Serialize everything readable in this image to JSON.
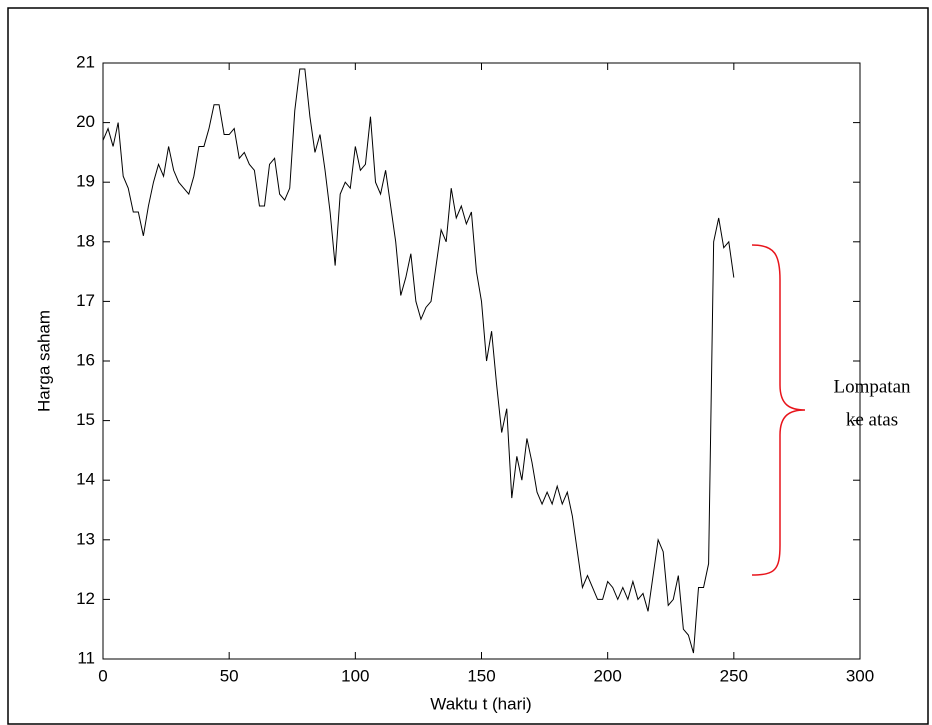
{
  "chart_data": {
    "type": "line",
    "xlabel": "Waktu t (hari)",
    "ylabel": "Harga saham",
    "annotation": [
      "Lompatan",
      "ke atas"
    ],
    "annotation_color": "#e8141b",
    "color": "#000000",
    "x": [
      0,
      2,
      4,
      6,
      8,
      10,
      12,
      14,
      16,
      18,
      20,
      22,
      24,
      26,
      28,
      30,
      32,
      34,
      36,
      38,
      40,
      42,
      44,
      46,
      48,
      50,
      52,
      54,
      56,
      58,
      60,
      62,
      64,
      66,
      68,
      70,
      72,
      74,
      76,
      78,
      80,
      82,
      84,
      86,
      88,
      90,
      92,
      94,
      96,
      98,
      100,
      102,
      104,
      106,
      108,
      110,
      112,
      114,
      116,
      118,
      120,
      122,
      124,
      126,
      128,
      130,
      132,
      134,
      136,
      138,
      140,
      142,
      144,
      146,
      148,
      150,
      152,
      154,
      156,
      158,
      160,
      162,
      164,
      166,
      168,
      170,
      172,
      174,
      176,
      178,
      180,
      182,
      184,
      186,
      188,
      190,
      192,
      194,
      196,
      198,
      200,
      202,
      204,
      206,
      208,
      210,
      212,
      214,
      216,
      218,
      220,
      222,
      224,
      226,
      228,
      230,
      232,
      234,
      236,
      238,
      240,
      242,
      244,
      246,
      248,
      250
    ],
    "values": [
      19.7,
      19.9,
      19.6,
      20.0,
      19.1,
      18.9,
      18.5,
      18.5,
      18.1,
      18.6,
      19.0,
      19.3,
      19.1,
      19.6,
      19.2,
      19.0,
      18.9,
      18.8,
      19.1,
      19.6,
      19.6,
      19.9,
      20.3,
      20.3,
      19.8,
      19.8,
      19.9,
      19.4,
      19.5,
      19.3,
      19.2,
      18.6,
      18.6,
      19.3,
      19.4,
      18.8,
      18.7,
      18.9,
      20.2,
      20.9,
      20.9,
      20.1,
      19.5,
      19.8,
      19.2,
      18.5,
      17.6,
      18.8,
      19.0,
      18.9,
      19.6,
      19.2,
      19.3,
      20.1,
      19.0,
      18.8,
      19.2,
      18.6,
      18.0,
      17.1,
      17.4,
      17.8,
      17.0,
      16.7,
      16.9,
      17.0,
      17.6,
      18.2,
      18.0,
      18.9,
      18.4,
      18.6,
      18.3,
      18.5,
      17.5,
      17.0,
      16.0,
      16.5,
      15.6,
      14.8,
      15.2,
      13.7,
      14.4,
      14.0,
      14.7,
      14.3,
      13.8,
      13.6,
      13.8,
      13.6,
      13.9,
      13.6,
      13.8,
      13.4,
      12.8,
      12.2,
      12.4,
      12.2,
      12.0,
      12.0,
      12.3,
      12.2,
      12.0,
      12.2,
      12.0,
      12.3,
      12.0,
      12.1,
      11.8,
      12.4,
      13.0,
      12.8,
      11.9,
      12.0,
      12.4,
      11.5,
      11.4,
      11.1,
      12.2,
      12.2,
      12.6,
      18.0,
      18.4,
      17.9,
      18.0,
      17.4
    ],
    "xlim": [
      0,
      300
    ],
    "xticks": [
      0,
      50,
      100,
      150,
      200,
      250,
      300
    ],
    "ylim": [
      11,
      21
    ],
    "yticks": [
      11,
      12,
      13,
      14,
      15,
      16,
      17,
      18,
      19,
      20,
      21
    ],
    "grid": false
  }
}
